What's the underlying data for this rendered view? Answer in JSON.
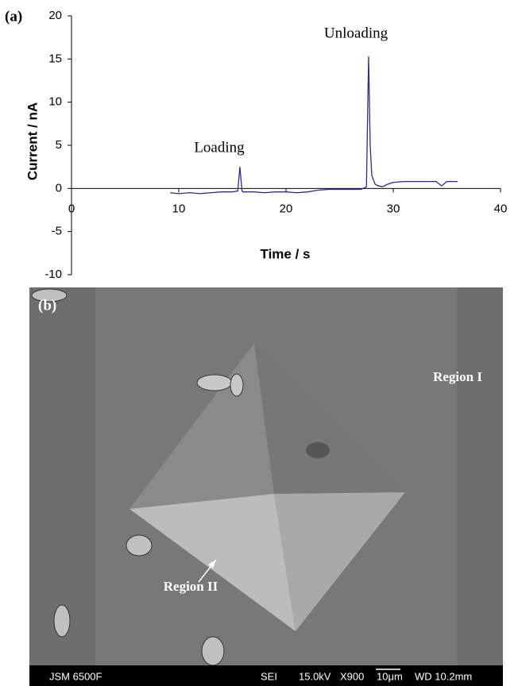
{
  "chart_data": {
    "type": "line",
    "panel_label": "(a)",
    "x_label": "Time / s",
    "y_label": "Current / nA",
    "annotations": [
      "Loading",
      "Unloading"
    ],
    "color": "#2b2b8c",
    "x": [
      9.2,
      10,
      11,
      12,
      13,
      14,
      15,
      15.5,
      15.7,
      15.9,
      16,
      17,
      18,
      19,
      20,
      21,
      22,
      23,
      24,
      25,
      26,
      27,
      27.5,
      27.7,
      27.85,
      28,
      28.3,
      28.6,
      29,
      29.5,
      30,
      31,
      32,
      33,
      34,
      34.5,
      35,
      36
    ],
    "values": [
      -0.5,
      -0.6,
      -0.5,
      -0.6,
      -0.5,
      -0.4,
      -0.4,
      -0.3,
      2.5,
      -0.3,
      -0.4,
      -0.4,
      -0.5,
      -0.4,
      -0.4,
      -0.5,
      -0.4,
      -0.2,
      -0.1,
      -0.1,
      -0.1,
      -0.1,
      0.2,
      15.3,
      5,
      1.5,
      0.5,
      0.3,
      0.2,
      0.5,
      0.7,
      0.8,
      0.8,
      0.8,
      0.8,
      0.3,
      0.8,
      0.8
    ],
    "xlim": [
      0,
      40
    ],
    "xticks": [
      0,
      10,
      20,
      30,
      40
    ],
    "ylim": [
      -10,
      20
    ],
    "yticks": [
      -10,
      -5,
      0,
      5,
      10,
      15,
      20
    ],
    "grid": false
  },
  "image_panel": {
    "panel_label": "(b)",
    "labels": [
      "Region I",
      "Region II"
    ],
    "info_bar": [
      "JSM 6500F",
      "SEI",
      "15.0kV",
      "X900",
      "10μm",
      "WD 10.2mm"
    ]
  }
}
